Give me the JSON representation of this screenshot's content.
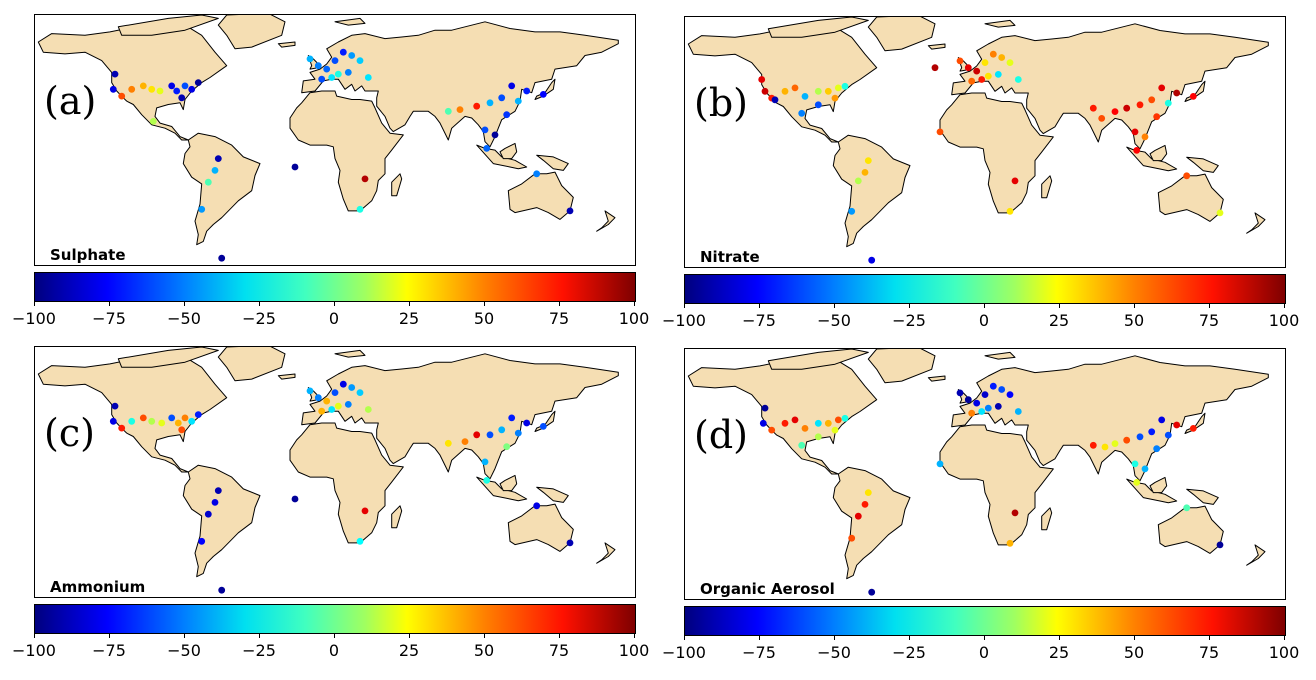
{
  "colorbar": {
    "ticks": [
      "−100",
      "−75",
      "−50",
      "−25",
      "0",
      "25",
      "50",
      "75",
      "100"
    ],
    "range": [
      -100,
      100
    ],
    "colormap": "jet"
  },
  "panels": [
    {
      "letter": "(a)",
      "species": "Sulphate",
      "sites": [
        {
          "lon": -122,
          "lat": 47,
          "v": -90
        },
        {
          "lon": -123,
          "lat": 38,
          "v": -80
        },
        {
          "lon": -118,
          "lat": 34,
          "v": 60
        },
        {
          "lon": -112,
          "lat": 38,
          "v": 50
        },
        {
          "lon": -105,
          "lat": 40,
          "v": 40
        },
        {
          "lon": -100,
          "lat": 38,
          "v": 30
        },
        {
          "lon": -95,
          "lat": 37,
          "v": 20
        },
        {
          "lon": -88,
          "lat": 40,
          "v": -80
        },
        {
          "lon": -85,
          "lat": 37,
          "v": -70
        },
        {
          "lon": -80,
          "lat": 40,
          "v": -60
        },
        {
          "lon": -76,
          "lat": 38,
          "v": -80
        },
        {
          "lon": -72,
          "lat": 42,
          "v": -95
        },
        {
          "lon": -82,
          "lat": 33,
          "v": -90
        },
        {
          "lon": -99,
          "lat": 19,
          "v": 10
        },
        {
          "lon": -60,
          "lat": -3,
          "v": -90
        },
        {
          "lon": -62,
          "lat": -10,
          "v": -40
        },
        {
          "lon": -66,
          "lat": -17,
          "v": -10
        },
        {
          "lon": -70,
          "lat": -33,
          "v": -45
        },
        {
          "lon": -58,
          "lat": -62,
          "v": -95
        },
        {
          "lon": -14,
          "lat": -8,
          "v": -95
        },
        {
          "lon": 28,
          "lat": -15,
          "v": 90
        },
        {
          "lon": 25,
          "lat": -33,
          "v": -20
        },
        {
          "lon": -5,
          "lat": 56,
          "v": -40
        },
        {
          "lon": 0,
          "lat": 52,
          "v": -50
        },
        {
          "lon": 5,
          "lat": 50,
          "v": -55
        },
        {
          "lon": 10,
          "lat": 55,
          "v": -60
        },
        {
          "lon": 15,
          "lat": 60,
          "v": -70
        },
        {
          "lon": 20,
          "lat": 58,
          "v": -45
        },
        {
          "lon": 25,
          "lat": 55,
          "v": -35
        },
        {
          "lon": 12,
          "lat": 47,
          "v": -20
        },
        {
          "lon": 8,
          "lat": 45,
          "v": -30
        },
        {
          "lon": 18,
          "lat": 48,
          "v": -50
        },
        {
          "lon": 2,
          "lat": 44,
          "v": -60
        },
        {
          "lon": 30,
          "lat": 45,
          "v": -30
        },
        {
          "lon": 78,
          "lat": 25,
          "v": -10
        },
        {
          "lon": 85,
          "lat": 26,
          "v": 50
        },
        {
          "lon": 95,
          "lat": 28,
          "v": 70
        },
        {
          "lon": 103,
          "lat": 30,
          "v": -40
        },
        {
          "lon": 110,
          "lat": 33,
          "v": -60
        },
        {
          "lon": 116,
          "lat": 40,
          "v": -80
        },
        {
          "lon": 120,
          "lat": 31,
          "v": -40
        },
        {
          "lon": 125,
          "lat": 37,
          "v": -70
        },
        {
          "lon": 135,
          "lat": 35,
          "v": -75
        },
        {
          "lon": 113,
          "lat": 23,
          "v": -65
        },
        {
          "lon": 100,
          "lat": 14,
          "v": -60
        },
        {
          "lon": 106,
          "lat": 11,
          "v": -95
        },
        {
          "lon": 101,
          "lat": 3,
          "v": -55
        },
        {
          "lon": 131,
          "lat": -12,
          "v": -50
        },
        {
          "lon": 151,
          "lat": -34,
          "v": -90
        }
      ]
    },
    {
      "letter": "(b)",
      "species": "Nitrate",
      "sites": [
        {
          "lon": -124,
          "lat": 45,
          "v": 80
        },
        {
          "lon": -122,
          "lat": 38,
          "v": 85
        },
        {
          "lon": -118,
          "lat": 34,
          "v": 70
        },
        {
          "lon": -116,
          "lat": 33,
          "v": -90
        },
        {
          "lon": -110,
          "lat": 38,
          "v": 40
        },
        {
          "lon": -104,
          "lat": 40,
          "v": 55
        },
        {
          "lon": -98,
          "lat": 35,
          "v": -40
        },
        {
          "lon": -90,
          "lat": 38,
          "v": 10
        },
        {
          "lon": -84,
          "lat": 38,
          "v": 35
        },
        {
          "lon": -78,
          "lat": 40,
          "v": 20
        },
        {
          "lon": -74,
          "lat": 41,
          "v": -20
        },
        {
          "lon": -80,
          "lat": 34,
          "v": 45
        },
        {
          "lon": -90,
          "lat": 30,
          "v": -60
        },
        {
          "lon": -100,
          "lat": 25,
          "v": -50
        },
        {
          "lon": -60,
          "lat": -3,
          "v": 30
        },
        {
          "lon": -62,
          "lat": -10,
          "v": 40
        },
        {
          "lon": -66,
          "lat": -15,
          "v": 10
        },
        {
          "lon": -70,
          "lat": -33,
          "v": -45
        },
        {
          "lon": -58,
          "lat": -62,
          "v": -80
        },
        {
          "lon": -17,
          "lat": 14,
          "v": 60
        },
        {
          "lon": 28,
          "lat": -15,
          "v": 80
        },
        {
          "lon": 25,
          "lat": -33,
          "v": 30
        },
        {
          "lon": -5,
          "lat": 56,
          "v": 60
        },
        {
          "lon": 0,
          "lat": 52,
          "v": 80
        },
        {
          "lon": 5,
          "lat": 50,
          "v": 85
        },
        {
          "lon": 10,
          "lat": 55,
          "v": 30
        },
        {
          "lon": 15,
          "lat": 60,
          "v": 50
        },
        {
          "lon": 20,
          "lat": 58,
          "v": 40
        },
        {
          "lon": 25,
          "lat": 55,
          "v": 20
        },
        {
          "lon": 12,
          "lat": 47,
          "v": 30
        },
        {
          "lon": 8,
          "lat": 45,
          "v": 70
        },
        {
          "lon": 18,
          "lat": 48,
          "v": -30
        },
        {
          "lon": 2,
          "lat": 44,
          "v": 55
        },
        {
          "lon": 30,
          "lat": 45,
          "v": -20
        },
        {
          "lon": -20,
          "lat": 52,
          "v": 90
        },
        {
          "lon": 75,
          "lat": 28,
          "v": 70
        },
        {
          "lon": 80,
          "lat": 22,
          "v": 60
        },
        {
          "lon": 88,
          "lat": 26,
          "v": 75
        },
        {
          "lon": 95,
          "lat": 28,
          "v": 85
        },
        {
          "lon": 103,
          "lat": 30,
          "v": 70
        },
        {
          "lon": 110,
          "lat": 33,
          "v": 60
        },
        {
          "lon": 116,
          "lat": 40,
          "v": 80
        },
        {
          "lon": 120,
          "lat": 31,
          "v": -20
        },
        {
          "lon": 125,
          "lat": 37,
          "v": 90
        },
        {
          "lon": 135,
          "lat": 35,
          "v": 75
        },
        {
          "lon": 113,
          "lat": 23,
          "v": 65
        },
        {
          "lon": 100,
          "lat": 14,
          "v": 80
        },
        {
          "lon": 106,
          "lat": 11,
          "v": 50
        },
        {
          "lon": 101,
          "lat": 3,
          "v": 75
        },
        {
          "lon": 131,
          "lat": -12,
          "v": 60
        },
        {
          "lon": 151,
          "lat": -34,
          "v": 20
        }
      ]
    },
    {
      "letter": "(c)",
      "species": "Ammonium",
      "sites": [
        {
          "lon": -122,
          "lat": 47,
          "v": -90
        },
        {
          "lon": -123,
          "lat": 38,
          "v": -80
        },
        {
          "lon": -118,
          "lat": 34,
          "v": 70
        },
        {
          "lon": -112,
          "lat": 38,
          "v": -20
        },
        {
          "lon": -105,
          "lat": 40,
          "v": 60
        },
        {
          "lon": -100,
          "lat": 38,
          "v": 10
        },
        {
          "lon": -94,
          "lat": 37,
          "v": 20
        },
        {
          "lon": -88,
          "lat": 40,
          "v": -60
        },
        {
          "lon": -84,
          "lat": 37,
          "v": 40
        },
        {
          "lon": -80,
          "lat": 40,
          "v": 50
        },
        {
          "lon": -76,
          "lat": 38,
          "v": -30
        },
        {
          "lon": -72,
          "lat": 42,
          "v": -70
        },
        {
          "lon": -82,
          "lat": 33,
          "v": 60
        },
        {
          "lon": -60,
          "lat": -3,
          "v": -90
        },
        {
          "lon": -62,
          "lat": -10,
          "v": -80
        },
        {
          "lon": -66,
          "lat": -17,
          "v": -85
        },
        {
          "lon": -70,
          "lat": -33,
          "v": -75
        },
        {
          "lon": -58,
          "lat": -62,
          "v": -95
        },
        {
          "lon": -14,
          "lat": -8,
          "v": -95
        },
        {
          "lon": 28,
          "lat": -15,
          "v": 80
        },
        {
          "lon": 25,
          "lat": -33,
          "v": -25
        },
        {
          "lon": -5,
          "lat": 56,
          "v": -40
        },
        {
          "lon": 0,
          "lat": 52,
          "v": -50
        },
        {
          "lon": 5,
          "lat": 50,
          "v": 40
        },
        {
          "lon": 10,
          "lat": 55,
          "v": -60
        },
        {
          "lon": 15,
          "lat": 60,
          "v": -80
        },
        {
          "lon": 20,
          "lat": 58,
          "v": -45
        },
        {
          "lon": 25,
          "lat": 55,
          "v": -35
        },
        {
          "lon": 12,
          "lat": 47,
          "v": 20
        },
        {
          "lon": 8,
          "lat": 45,
          "v": -30
        },
        {
          "lon": 18,
          "lat": 48,
          "v": -50
        },
        {
          "lon": 2,
          "lat": 44,
          "v": 40
        },
        {
          "lon": 30,
          "lat": 45,
          "v": 10
        },
        {
          "lon": 78,
          "lat": 25,
          "v": 30
        },
        {
          "lon": 88,
          "lat": 26,
          "v": 50
        },
        {
          "lon": 95,
          "lat": 30,
          "v": 80
        },
        {
          "lon": 103,
          "lat": 30,
          "v": -60
        },
        {
          "lon": 110,
          "lat": 33,
          "v": -40
        },
        {
          "lon": 116,
          "lat": 40,
          "v": -70
        },
        {
          "lon": 120,
          "lat": 31,
          "v": -50
        },
        {
          "lon": 125,
          "lat": 37,
          "v": -80
        },
        {
          "lon": 135,
          "lat": 35,
          "v": -60
        },
        {
          "lon": 113,
          "lat": 23,
          "v": 0
        },
        {
          "lon": 100,
          "lat": 14,
          "v": -40
        },
        {
          "lon": 101,
          "lat": 3,
          "v": -20
        },
        {
          "lon": 131,
          "lat": -12,
          "v": -80
        },
        {
          "lon": 151,
          "lat": -34,
          "v": -90
        }
      ]
    },
    {
      "letter": "(d)",
      "species": "Organic Aerosol",
      "sites": [
        {
          "lon": -122,
          "lat": 47,
          "v": -95
        },
        {
          "lon": -123,
          "lat": 38,
          "v": -80
        },
        {
          "lon": -118,
          "lat": 34,
          "v": 60
        },
        {
          "lon": -110,
          "lat": 38,
          "v": 70
        },
        {
          "lon": -104,
          "lat": 40,
          "v": 80
        },
        {
          "lon": -98,
          "lat": 35,
          "v": 50
        },
        {
          "lon": -90,
          "lat": 38,
          "v": -30
        },
        {
          "lon": -84,
          "lat": 38,
          "v": 40
        },
        {
          "lon": -78,
          "lat": 40,
          "v": 60
        },
        {
          "lon": -74,
          "lat": 41,
          "v": -20
        },
        {
          "lon": -80,
          "lat": 34,
          "v": 20
        },
        {
          "lon": -90,
          "lat": 30,
          "v": 10
        },
        {
          "lon": -100,
          "lat": 25,
          "v": -10
        },
        {
          "lon": -60,
          "lat": -3,
          "v": 30
        },
        {
          "lon": -62,
          "lat": -10,
          "v": 70
        },
        {
          "lon": -66,
          "lat": -17,
          "v": 80
        },
        {
          "lon": -70,
          "lat": -30,
          "v": 60
        },
        {
          "lon": -58,
          "lat": -62,
          "v": -95
        },
        {
          "lon": -17,
          "lat": 14,
          "v": -40
        },
        {
          "lon": 28,
          "lat": -15,
          "v": 90
        },
        {
          "lon": 25,
          "lat": -33,
          "v": 40
        },
        {
          "lon": -5,
          "lat": 56,
          "v": -90
        },
        {
          "lon": 0,
          "lat": 52,
          "v": -95
        },
        {
          "lon": 5,
          "lat": 50,
          "v": -80
        },
        {
          "lon": 10,
          "lat": 55,
          "v": -85
        },
        {
          "lon": 15,
          "lat": 60,
          "v": -70
        },
        {
          "lon": 20,
          "lat": 58,
          "v": -60
        },
        {
          "lon": 25,
          "lat": 55,
          "v": -75
        },
        {
          "lon": 12,
          "lat": 47,
          "v": -50
        },
        {
          "lon": 8,
          "lat": 45,
          "v": -30
        },
        {
          "lon": 18,
          "lat": 48,
          "v": -90
        },
        {
          "lon": 2,
          "lat": 44,
          "v": 50
        },
        {
          "lon": 30,
          "lat": 45,
          "v": -40
        },
        {
          "lon": 75,
          "lat": 25,
          "v": 70
        },
        {
          "lon": 82,
          "lat": 24,
          "v": 30
        },
        {
          "lon": 88,
          "lat": 26,
          "v": 20
        },
        {
          "lon": 95,
          "lat": 28,
          "v": 60
        },
        {
          "lon": 103,
          "lat": 30,
          "v": -60
        },
        {
          "lon": 110,
          "lat": 33,
          "v": -70
        },
        {
          "lon": 116,
          "lat": 40,
          "v": -80
        },
        {
          "lon": 120,
          "lat": 31,
          "v": -60
        },
        {
          "lon": 125,
          "lat": 37,
          "v": 80
        },
        {
          "lon": 135,
          "lat": 35,
          "v": 70
        },
        {
          "lon": 113,
          "lat": 23,
          "v": -50
        },
        {
          "lon": 100,
          "lat": 14,
          "v": -20
        },
        {
          "lon": 106,
          "lat": 11,
          "v": -40
        },
        {
          "lon": 101,
          "lat": 3,
          "v": 20
        },
        {
          "lon": 131,
          "lat": -12,
          "v": -10
        },
        {
          "lon": 151,
          "lat": -34,
          "v": -95
        }
      ]
    }
  ]
}
